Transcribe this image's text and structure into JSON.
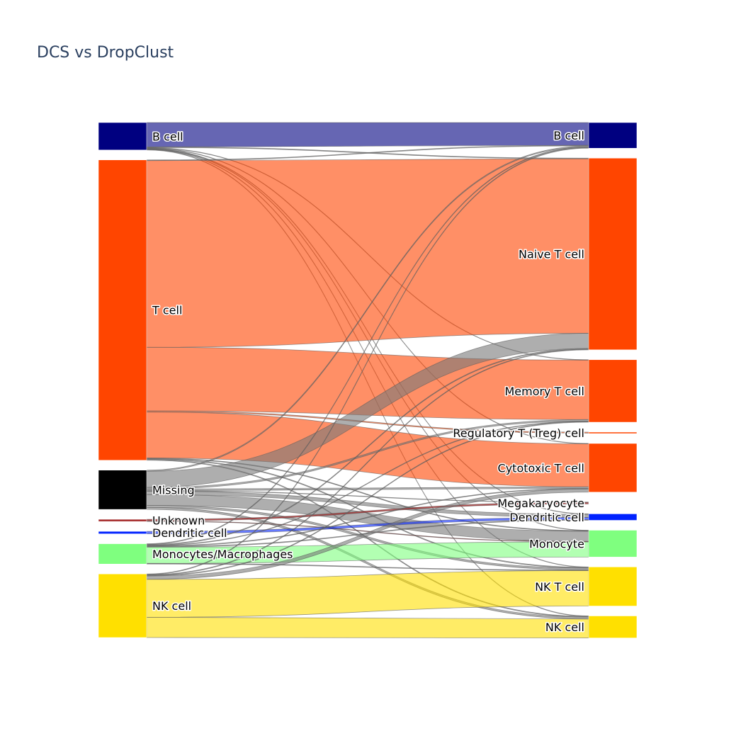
{
  "title": "DCS vs DropClust",
  "chart_data": {
    "type": "sankey",
    "colors": {
      "B cell": "#000080",
      "T cell": "#ff4500",
      "Missing": "#000000",
      "Unknown": "#a52a2a",
      "Dendritic cell": "#0022ff",
      "Monocytes/Macrophages": "#7fff7f",
      "NK cell": "#ffe000",
      "Naive T cell": "#ff4500",
      "Memory T cell": "#ff4500",
      "Regulatory T (Treg) cell": "#ff4500",
      "Cytotoxic T cell": "#ff4500",
      "Megakaryocyte": "#ffffff",
      "Monocyte": "#7fff7f",
      "NK T cell": "#ffe000"
    },
    "source_nodes": [
      "B cell",
      "T cell",
      "Missing",
      "Unknown",
      "Dendritic cell",
      "Monocytes/Macrophages",
      "NK cell"
    ],
    "target_nodes": [
      "B cell",
      "Naive T cell",
      "Memory T cell",
      "Regulatory T (Treg) cell",
      "Cytotoxic T cell",
      "Megakaryocyte",
      "Dendritic cell",
      "Monocyte",
      "NK T cell",
      "NK cell"
    ],
    "links": [
      {
        "source": "B cell",
        "target": "B cell",
        "value": 18
      },
      {
        "source": "B cell",
        "target": "Naive T cell",
        "value": 0.5
      },
      {
        "source": "B cell",
        "target": "Memory T cell",
        "value": 0.3
      },
      {
        "source": "B cell",
        "target": "Cytotoxic T cell",
        "value": 0.3
      },
      {
        "source": "B cell",
        "target": "Dendritic cell",
        "value": 0.3
      },
      {
        "source": "B cell",
        "target": "Monocyte",
        "value": 0.3
      },
      {
        "source": "B cell",
        "target": "NK T cell",
        "value": 0.3
      },
      {
        "source": "B cell",
        "target": "NK cell",
        "value": 0.3
      },
      {
        "source": "T cell",
        "target": "B cell",
        "value": 0.5
      },
      {
        "source": "T cell",
        "target": "Naive T cell",
        "value": 138
      },
      {
        "source": "T cell",
        "target": "Memory T cell",
        "value": 47
      },
      {
        "source": "T cell",
        "target": "Regulatory T (Treg) cell",
        "value": 0.8
      },
      {
        "source": "T cell",
        "target": "Cytotoxic T cell",
        "value": 34
      },
      {
        "source": "T cell",
        "target": "Monocyte",
        "value": 0.5
      },
      {
        "source": "T cell",
        "target": "NK T cell",
        "value": 0.6
      },
      {
        "source": "T cell",
        "target": "NK cell",
        "value": 0.6
      },
      {
        "source": "Missing",
        "target": "B cell",
        "value": 0.8
      },
      {
        "source": "Missing",
        "target": "Naive T cell",
        "value": 12
      },
      {
        "source": "Missing",
        "target": "Memory T cell",
        "value": 1.2
      },
      {
        "source": "Missing",
        "target": "Cytotoxic T cell",
        "value": 1.2
      },
      {
        "source": "Missing",
        "target": "Megakaryocyte",
        "value": 0.3
      },
      {
        "source": "Missing",
        "target": "Dendritic cell",
        "value": 2.5
      },
      {
        "source": "Missing",
        "target": "Monocyte",
        "value": 8
      },
      {
        "source": "Missing",
        "target": "NK T cell",
        "value": 1.5
      },
      {
        "source": "Missing",
        "target": "NK cell",
        "value": 1.5
      },
      {
        "source": "Unknown",
        "target": "Megakaryocyte",
        "value": 1.2
      },
      {
        "source": "Unknown",
        "target": "Monocyte",
        "value": 0.4
      },
      {
        "source": "Dendritic cell",
        "target": "Dendritic cell",
        "value": 1.8
      },
      {
        "source": "Monocytes/Macrophages",
        "target": "B cell",
        "value": 0.5
      },
      {
        "source": "Monocytes/Macrophages",
        "target": "Naive T cell",
        "value": 0.6
      },
      {
        "source": "Monocytes/Macrophages",
        "target": "Memory T cell",
        "value": 0.4
      },
      {
        "source": "Monocytes/Macrophages",
        "target": "Cytotoxic T cell",
        "value": 0.5
      },
      {
        "source": "Monocytes/Macrophages",
        "target": "Dendritic cell",
        "value": 0.5
      },
      {
        "source": "Monocytes/Macrophages",
        "target": "Monocyte",
        "value": 12
      },
      {
        "source": "Monocytes/Macrophages",
        "target": "NK T cell",
        "value": 0.5
      },
      {
        "source": "NK cell",
        "target": "B cell",
        "value": 0.5
      },
      {
        "source": "NK cell",
        "target": "Naive T cell",
        "value": 0.5
      },
      {
        "source": "NK cell",
        "target": "Memory T cell",
        "value": 0.5
      },
      {
        "source": "NK cell",
        "target": "Cytotoxic T cell",
        "value": 2.5
      },
      {
        "source": "NK cell",
        "target": "NK T cell",
        "value": 28
      },
      {
        "source": "NK cell",
        "target": "NK cell",
        "value": 15
      }
    ]
  }
}
